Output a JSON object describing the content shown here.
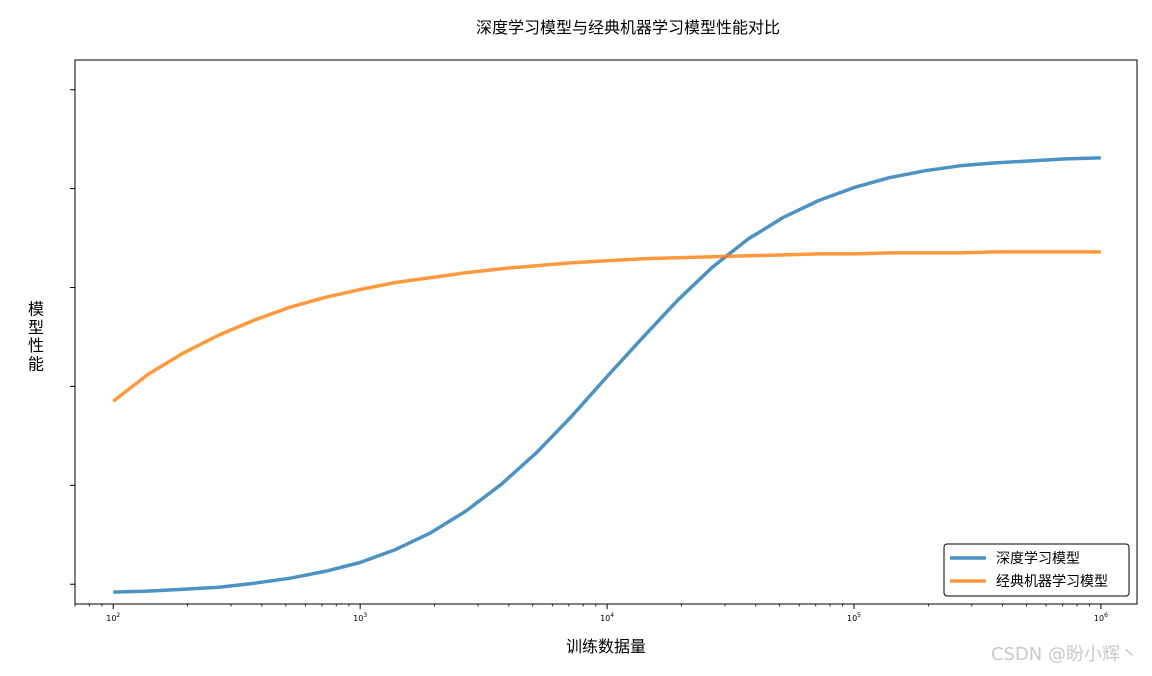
{
  "chart_data": {
    "type": "line",
    "title": "深度学习模型与经典机器学习模型性能对比",
    "xlabel": "训练数据量",
    "ylabel": "模型性能",
    "x_scale": "log",
    "xlim": [
      70,
      1400000
    ],
    "ylim": [
      0.43,
      0.98
    ],
    "x_ticks": [
      100,
      1000,
      10000,
      100000,
      1000000
    ],
    "x_tick_labels": [
      {
        "base": "10",
        "exp": "2"
      },
      {
        "base": "10",
        "exp": "3"
      },
      {
        "base": "10",
        "exp": "4"
      },
      {
        "base": "10",
        "exp": "5"
      },
      {
        "base": "10",
        "exp": "6"
      }
    ],
    "y_ticks": [
      0.45,
      0.55,
      0.65,
      0.75,
      0.85,
      0.95
    ],
    "y_tick_labels_visible": false,
    "grid": false,
    "legend_position": "lower-right",
    "x": [
      100,
      138,
      193,
      268,
      373,
      518,
      720,
      1000,
      1389,
      1931,
      2683,
      3728,
      5179,
      7197,
      10000,
      13895,
      19307,
      26827,
      37276,
      51795,
      71969,
      100000,
      138950,
      193070,
      268270,
      372760,
      517950,
      719690,
      1000000
    ],
    "series": [
      {
        "name": "深度学习模型",
        "color": "#1f77b4",
        "values": [
          0.442,
          0.443,
          0.445,
          0.447,
          0.451,
          0.456,
          0.463,
          0.472,
          0.485,
          0.502,
          0.524,
          0.551,
          0.583,
          0.62,
          0.66,
          0.699,
          0.737,
          0.771,
          0.799,
          0.821,
          0.838,
          0.851,
          0.861,
          0.868,
          0.873,
          0.876,
          0.878,
          0.88,
          0.881
        ]
      },
      {
        "name": "经典机器学习模型",
        "color": "#ff7f0e",
        "values": [
          0.635,
          0.662,
          0.684,
          0.702,
          0.717,
          0.73,
          0.74,
          0.748,
          0.755,
          0.76,
          0.765,
          0.769,
          0.772,
          0.775,
          0.777,
          0.779,
          0.78,
          0.781,
          0.782,
          0.783,
          0.784,
          0.784,
          0.785,
          0.785,
          0.785,
          0.786,
          0.786,
          0.786,
          0.786
        ]
      }
    ]
  },
  "watermark": "CSDN @盼小辉丶"
}
